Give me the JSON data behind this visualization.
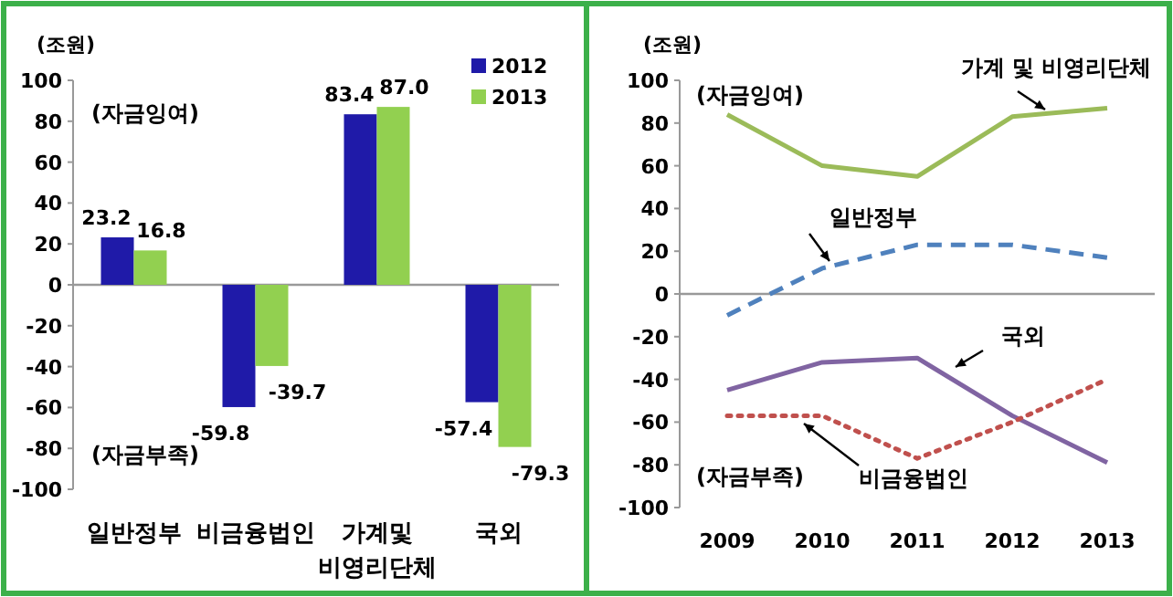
{
  "chart_data": [
    {
      "type": "bar",
      "ylabel": "(조원)",
      "categories": [
        "일반정부",
        "비금융법인",
        "가계및\n비영리단체",
        "국외"
      ],
      "series": [
        {
          "name": "2012",
          "color": "#1f1aa8",
          "values": [
            23.2,
            -59.8,
            83.4,
            -57.4
          ],
          "value_labels": [
            "23.2",
            "-59.8",
            "83.4",
            "-57.4"
          ]
        },
        {
          "name": "2013",
          "color": "#92d050",
          "values": [
            16.8,
            -39.7,
            87.0,
            -79.3
          ],
          "value_labels": [
            "16.8",
            "-39.7",
            "87.0",
            "-79.3"
          ]
        }
      ],
      "ylim": [
        -100,
        100
      ],
      "yticks": [
        -100,
        -80,
        -60,
        -40,
        -20,
        0,
        20,
        40,
        60,
        80,
        100
      ],
      "legend": "top right",
      "annotations": [
        "(자금잉여)",
        "(자금부족)"
      ]
    },
    {
      "type": "line",
      "ylabel": "(조원)",
      "categories": [
        "2009",
        "2010",
        "2011",
        "2012",
        "2013"
      ],
      "series": [
        {
          "name": "가계 및 비영리단체",
          "color": "#9bbb59",
          "line_style": "solid",
          "values": [
            84,
            60,
            55,
            83,
            87
          ]
        },
        {
          "name": "일반정부",
          "color": "#4f81bd",
          "line_style": "dashed",
          "values": [
            -10,
            12,
            23,
            23,
            17
          ]
        },
        {
          "name": "국외",
          "color": "#8064a2",
          "line_style": "solid",
          "values": [
            -45,
            -32,
            -30,
            -57,
            -79
          ]
        },
        {
          "name": "비금융법인",
          "color": "#c0504d",
          "line_style": "dotted",
          "values": [
            -57,
            -57,
            -77,
            -60,
            -40
          ]
        }
      ],
      "ylim": [
        -100,
        100
      ],
      "yticks": [
        -100,
        -80,
        -60,
        -40,
        -20,
        0,
        20,
        40,
        60,
        80,
        100
      ],
      "annotations": [
        "(자금잉여)",
        "(자금부족)"
      ]
    }
  ]
}
